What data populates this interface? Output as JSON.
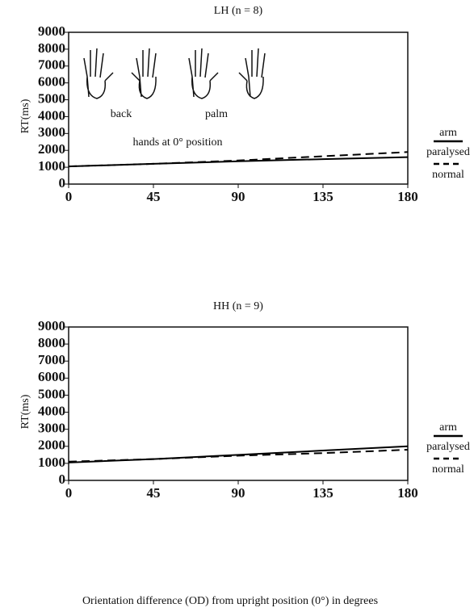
{
  "chart_data": [
    {
      "type": "line",
      "title": "LH (n = 8)",
      "ylabel": "RT(ms)",
      "legend_title": "arm",
      "x": [
        0,
        45,
        90,
        135,
        180
      ],
      "xlim": [
        0,
        180
      ],
      "xticks": [
        0,
        45,
        90,
        135,
        180
      ],
      "ylim": [
        0,
        9000
      ],
      "yticks": [
        0,
        1000,
        2000,
        3000,
        4000,
        5000,
        6000,
        7000,
        8000,
        9000
      ],
      "series": [
        {
          "name": "paralysed",
          "color": "#000000",
          "dash": false,
          "values": [
            1050,
            1200,
            1350,
            1480,
            1600
          ]
        },
        {
          "name": "normal",
          "color": "#000000",
          "dash": true,
          "values": [
            1050,
            1200,
            1400,
            1650,
            1900
          ]
        }
      ],
      "annotations": [
        "back",
        "palm",
        "hands at 0° position"
      ]
    },
    {
      "type": "line",
      "title": "HH (n = 9)",
      "ylabel": "RT(ms)",
      "legend_title": "arm",
      "xlabel": "Orientation difference (OD) from upright position (0°) in degrees",
      "x": [
        0,
        45,
        90,
        135,
        180
      ],
      "xlim": [
        0,
        180
      ],
      "xticks": [
        0,
        45,
        90,
        135,
        180
      ],
      "ylim": [
        0,
        9000
      ],
      "yticks": [
        0,
        1000,
        2000,
        3000,
        4000,
        5000,
        6000,
        7000,
        8000,
        9000
      ],
      "series": [
        {
          "name": "paralysed",
          "color": "#000000",
          "dash": false,
          "values": [
            1050,
            1250,
            1500,
            1750,
            2000
          ]
        },
        {
          "name": "normal",
          "color": "#000000",
          "dash": true,
          "values": [
            1100,
            1250,
            1450,
            1600,
            1800
          ]
        }
      ]
    }
  ]
}
